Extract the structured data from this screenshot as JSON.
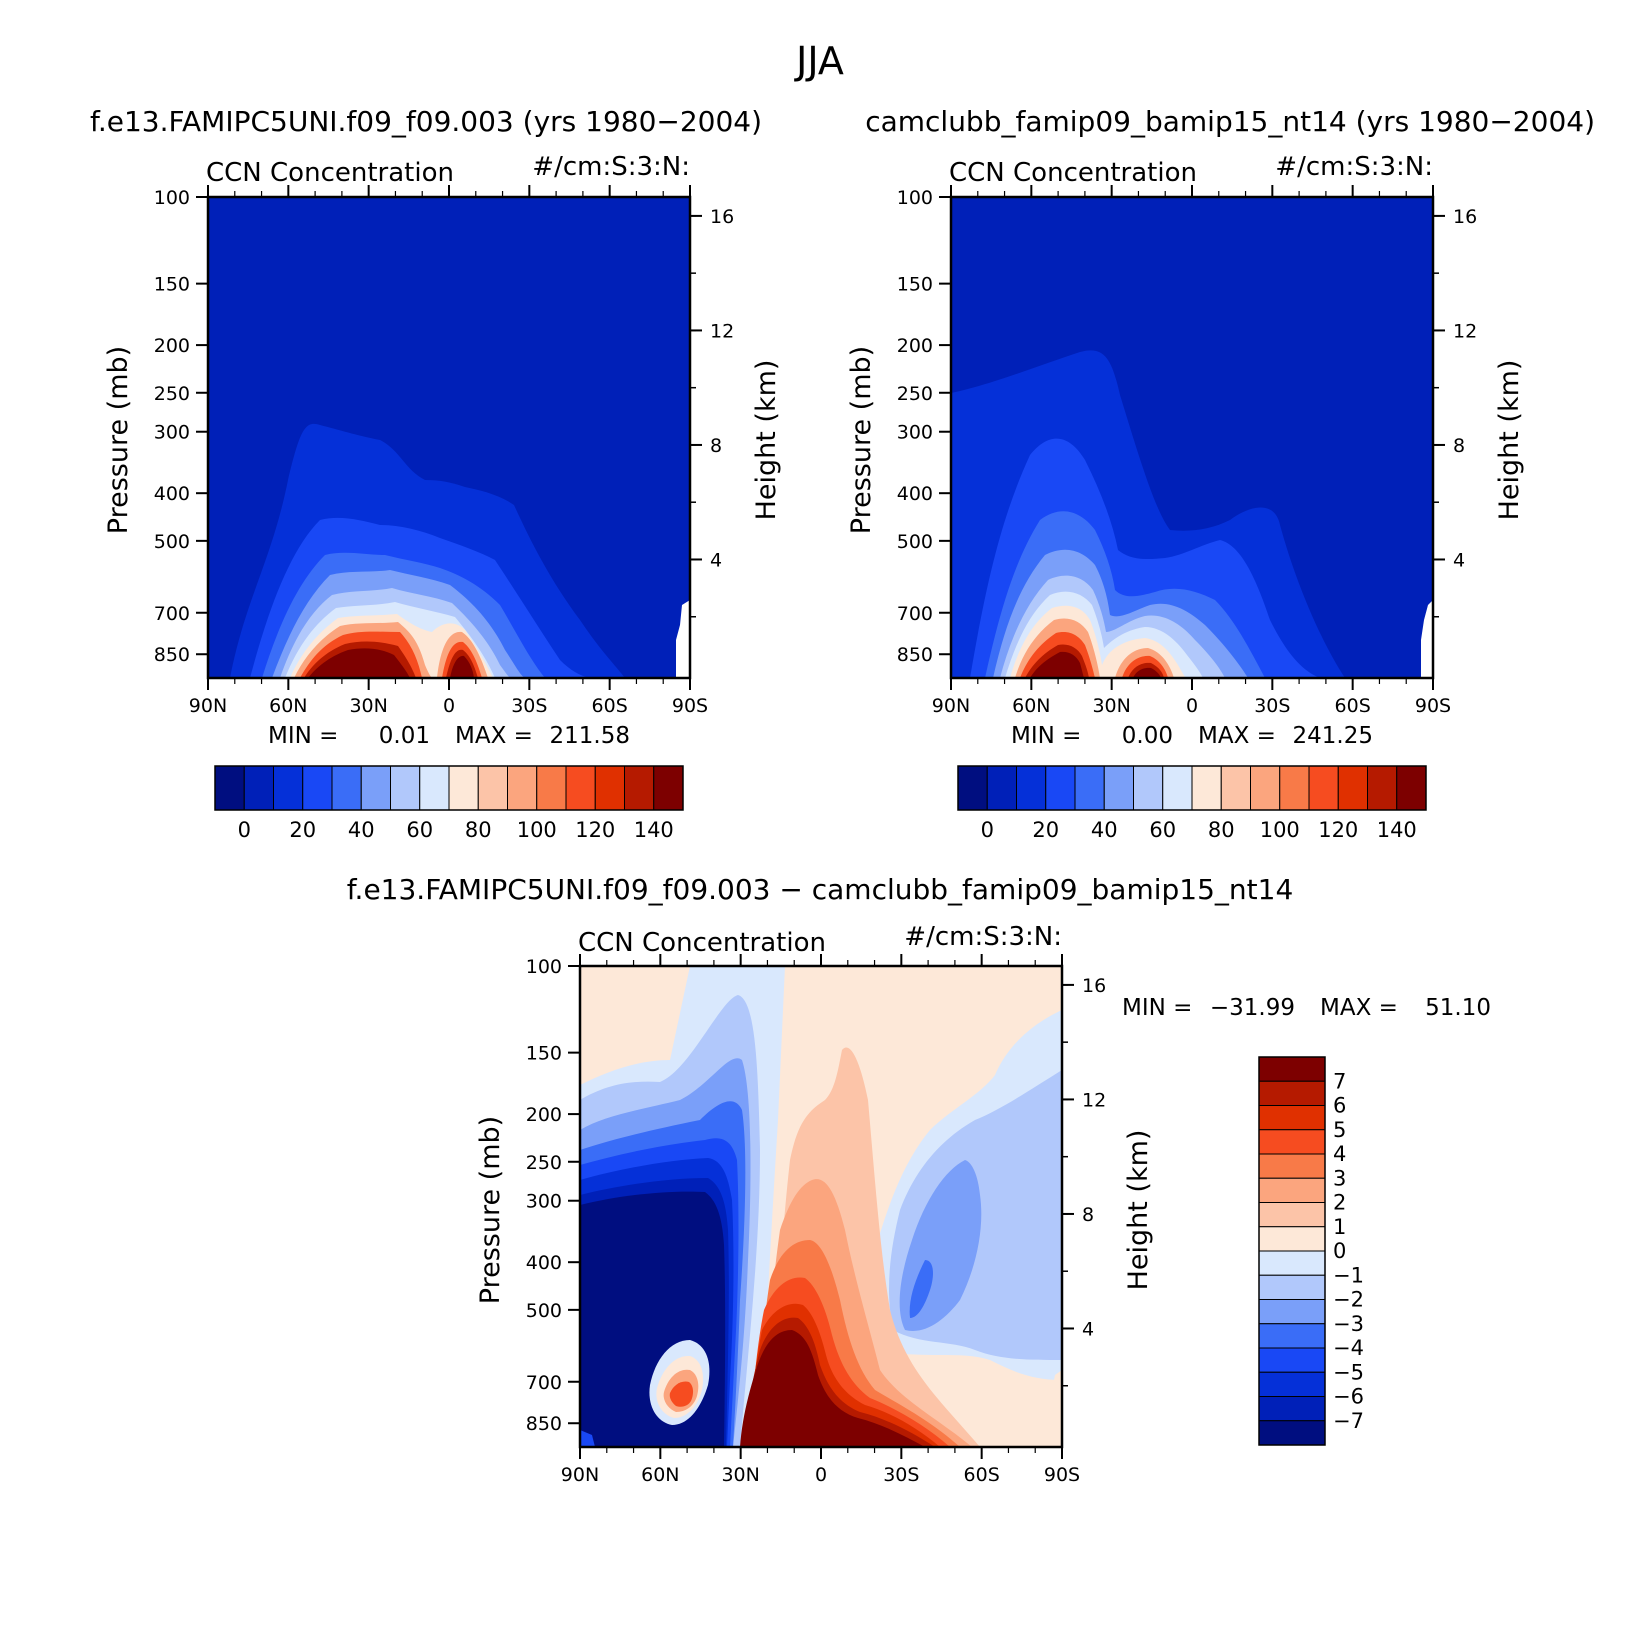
{
  "season": "JJA",
  "colors": {
    "seq": [
      "#000e80",
      "#0020b8",
      "#0530d8",
      "#1948f5",
      "#3a6df7",
      "#7a9ff9",
      "#b1c8fb",
      "#d9e8fd",
      "#fde8d8",
      "#fcc4a8",
      "#fba57e",
      "#f87a48",
      "#f64c20",
      "#e03000",
      "#b51a00",
      "#7d0000"
    ],
    "diff": [
      "#000e80",
      "#0020b8",
      "#0530d8",
      "#1948f5",
      "#3a6df7",
      "#7a9ff9",
      "#b1c8fb",
      "#d9e8fd",
      "#fde8d8",
      "#fcc4a8",
      "#fba57e",
      "#f87a48",
      "#f64c20",
      "#e03000",
      "#b51a00",
      "#7d0000"
    ]
  },
  "chart_data": [
    {
      "type": "heatmap",
      "title": "f.e13.FAMIPC5UNI.f09_f09.003 (yrs 1980−2004)",
      "variable": "CCN Concentration",
      "units": "#/cm:S:3:N:",
      "xlabel": "",
      "ylabel": "Pressure (mb)",
      "ylabel_right": "Height (km)",
      "x_ticks": [
        "90N",
        "60N",
        "30N",
        "0",
        "30S",
        "60S",
        "90S"
      ],
      "y_ticks": [
        "100",
        "150",
        "200",
        "250",
        "300",
        "400",
        "500",
        "700",
        "850"
      ],
      "y_right_ticks": [
        "16",
        "12",
        "8",
        "4"
      ],
      "ylog": true,
      "min_label": "MIN =",
      "min_value": "0.01",
      "max_label": "MAX =",
      "max_value": "211.58",
      "colorbar_labels": [
        "0",
        "20",
        "40",
        "60",
        "80",
        "100",
        "120",
        "140"
      ]
    },
    {
      "type": "heatmap",
      "title": "camclubb_famip09_bamip15_nt14 (yrs 1980−2004)",
      "variable": "CCN Concentration",
      "units": "#/cm:S:3:N:",
      "xlabel": "",
      "ylabel": "Pressure (mb)",
      "ylabel_right": "Height (km)",
      "x_ticks": [
        "90N",
        "60N",
        "30N",
        "0",
        "30S",
        "60S",
        "90S"
      ],
      "y_ticks": [
        "100",
        "150",
        "200",
        "250",
        "300",
        "400",
        "500",
        "700",
        "850"
      ],
      "y_right_ticks": [
        "16",
        "12",
        "8",
        "4"
      ],
      "ylog": true,
      "min_label": "MIN =",
      "min_value": "0.00",
      "max_label": "MAX =",
      "max_value": "241.25",
      "colorbar_labels": [
        "0",
        "20",
        "40",
        "60",
        "80",
        "100",
        "120",
        "140"
      ]
    },
    {
      "type": "heatmap",
      "title": "f.e13.FAMIPC5UNI.f09_f09.003 − camclubb_famip09_bamip15_nt14",
      "variable": "CCN Concentration",
      "units": "#/cm:S:3:N:",
      "xlabel": "",
      "ylabel": "Pressure (mb)",
      "ylabel_right": "Height (km)",
      "x_ticks": [
        "90N",
        "60N",
        "30N",
        "0",
        "30S",
        "60S",
        "90S"
      ],
      "y_ticks": [
        "100",
        "150",
        "200",
        "250",
        "300",
        "400",
        "500",
        "700",
        "850"
      ],
      "y_right_ticks": [
        "16",
        "12",
        "8",
        "4"
      ],
      "ylog": true,
      "min_label": "MIN =",
      "min_value": "−31.99",
      "max_label": "MAX =",
      "max_value": "51.10",
      "colorbar_labels": [
        "7",
        "6",
        "5",
        "4",
        "3",
        "2",
        "1",
        "0",
        "−1",
        "−2",
        "−3",
        "−4",
        "−5",
        "−6",
        "−7"
      ]
    }
  ]
}
